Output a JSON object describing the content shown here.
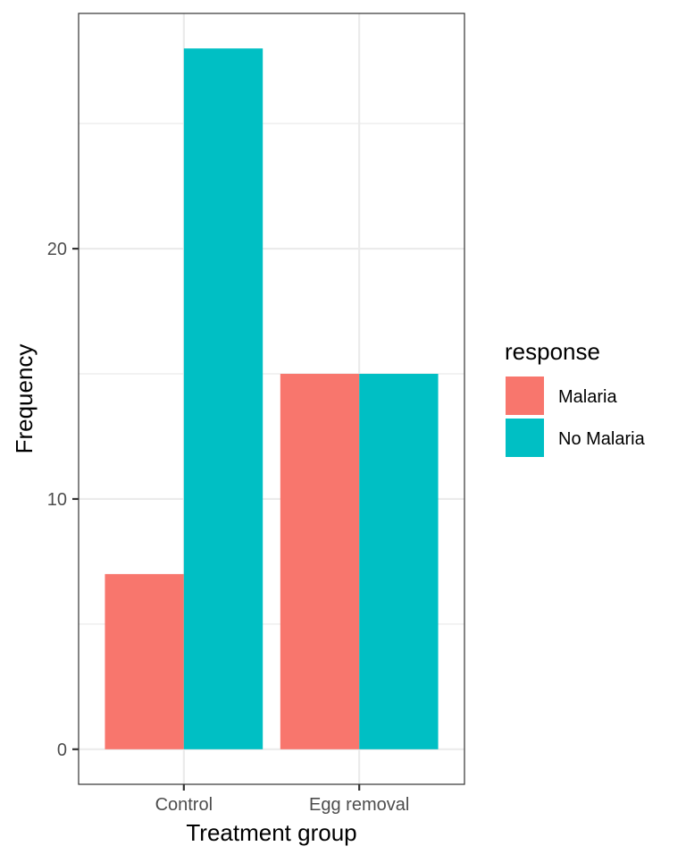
{
  "chart_data": {
    "type": "bar",
    "categories": [
      "Control",
      "Egg removal"
    ],
    "series": [
      {
        "name": "Malaria",
        "values": [
          7,
          15
        ],
        "color": "#F8766D"
      },
      {
        "name": "No Malaria",
        "values": [
          28,
          15
        ],
        "color": "#00BFC4"
      }
    ],
    "xlabel": "Treatment group",
    "ylabel": "Frequency",
    "ylim": [
      -1.4,
      29.4
    ],
    "yticks": [
      0,
      10,
      20
    ],
    "grid": true,
    "legend": {
      "title": "response",
      "position": "right"
    }
  }
}
